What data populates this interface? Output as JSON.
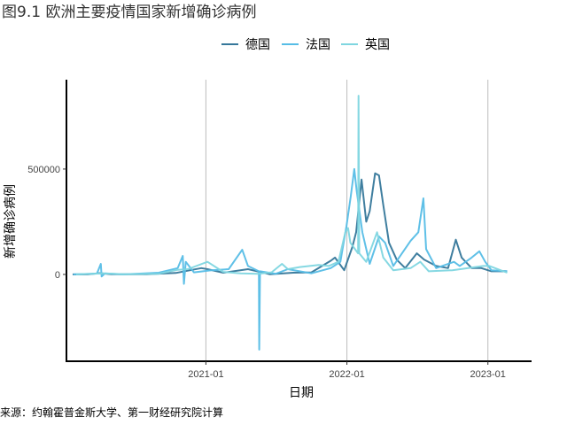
{
  "chart_data": {
    "type": "line",
    "title": "图9.1 欧洲主要疫情国家新增确诊病例",
    "xlabel": "日期",
    "ylabel": "新增确诊病例",
    "source": "来源：约翰霍普金斯大学、第一财经研究院计算",
    "xlim": [
      "2020-01-06",
      "2023-04-24"
    ],
    "ylim": [
      -412000,
      924000
    ],
    "x_ticks": [
      "2021-01",
      "2022-01",
      "2023-01"
    ],
    "y_ticks": [
      {
        "label": "500000",
        "value": 500000
      },
      {
        "label": "0",
        "value": 0
      }
    ],
    "grid": "vertical major lines only",
    "legend_position": "top",
    "series": [
      {
        "name": "德国",
        "color": "#35779a",
        "points": [
          [
            "2020-01-22",
            0
          ],
          [
            "2020-03-01",
            0
          ],
          [
            "2020-04-01",
            6000
          ],
          [
            "2020-05-01",
            1000
          ],
          [
            "2020-08-01",
            1000
          ],
          [
            "2020-10-15",
            7000
          ],
          [
            "2020-12-20",
            30000
          ],
          [
            "2021-01-05",
            25000
          ],
          [
            "2021-02-15",
            8000
          ],
          [
            "2021-04-20",
            25000
          ],
          [
            "2021-06-15",
            1000
          ],
          [
            "2021-08-15",
            8000
          ],
          [
            "2021-10-01",
            10000
          ],
          [
            "2021-11-20",
            65000
          ],
          [
            "2021-12-01",
            80000
          ],
          [
            "2021-12-25",
            20000
          ],
          [
            "2022-01-15",
            130000
          ],
          [
            "2022-01-25",
            200000
          ],
          [
            "2022-02-08",
            450000
          ],
          [
            "2022-02-20",
            250000
          ],
          [
            "2022-03-01",
            300000
          ],
          [
            "2022-03-15",
            480000
          ],
          [
            "2022-03-25",
            470000
          ],
          [
            "2022-04-05",
            330000
          ],
          [
            "2022-04-20",
            150000
          ],
          [
            "2022-05-10",
            70000
          ],
          [
            "2022-06-01",
            30000
          ],
          [
            "2022-07-01",
            100000
          ],
          [
            "2022-07-20",
            70000
          ],
          [
            "2022-08-20",
            40000
          ],
          [
            "2022-09-20",
            30000
          ],
          [
            "2022-10-10",
            165000
          ],
          [
            "2022-10-25",
            80000
          ],
          [
            "2022-11-20",
            30000
          ],
          [
            "2022-12-15",
            30000
          ],
          [
            "2023-01-10",
            15000
          ],
          [
            "2023-02-20",
            15000
          ]
        ]
      },
      {
        "name": "法国",
        "color": "#56bde6",
        "points": [
          [
            "2020-01-24",
            0
          ],
          [
            "2020-03-25",
            4000
          ],
          [
            "2020-04-04",
            50000
          ],
          [
            "2020-04-06",
            -10000
          ],
          [
            "2020-04-15",
            5000
          ],
          [
            "2020-06-01",
            0
          ],
          [
            "2020-09-01",
            8000
          ],
          [
            "2020-10-20",
            30000
          ],
          [
            "2020-11-02",
            88000
          ],
          [
            "2020-11-05",
            -45000
          ],
          [
            "2020-11-10",
            60000
          ],
          [
            "2020-12-01",
            10000
          ],
          [
            "2021-01-15",
            20000
          ],
          [
            "2021-03-01",
            25000
          ],
          [
            "2021-04-05",
            117000
          ],
          [
            "2021-04-20",
            40000
          ],
          [
            "2021-05-18",
            15000
          ],
          [
            "2021-05-19",
            -357000
          ],
          [
            "2021-05-21",
            15000
          ],
          [
            "2021-07-01",
            3000
          ],
          [
            "2021-08-01",
            25000
          ],
          [
            "2021-10-01",
            5000
          ],
          [
            "2021-11-20",
            30000
          ],
          [
            "2021-12-15",
            60000
          ],
          [
            "2021-12-31",
            230000
          ],
          [
            "2022-01-11",
            370000
          ],
          [
            "2022-01-20",
            500000
          ],
          [
            "2022-01-26",
            400000
          ],
          [
            "2022-02-10",
            200000
          ],
          [
            "2022-03-01",
            50000
          ],
          [
            "2022-03-25",
            180000
          ],
          [
            "2022-04-10",
            150000
          ],
          [
            "2022-05-01",
            40000
          ],
          [
            "2022-06-15",
            160000
          ],
          [
            "2022-07-05",
            200000
          ],
          [
            "2022-07-18",
            361000
          ],
          [
            "2022-07-25",
            120000
          ],
          [
            "2022-08-20",
            30000
          ],
          [
            "2022-10-05",
            60000
          ],
          [
            "2022-10-20",
            40000
          ],
          [
            "2022-11-20",
            80000
          ],
          [
            "2022-12-10",
            110000
          ],
          [
            "2022-12-25",
            60000
          ],
          [
            "2023-01-10",
            20000
          ],
          [
            "2023-02-20",
            15000
          ]
        ]
      },
      {
        "name": "英国",
        "color": "#7fd6e0",
        "points": [
          [
            "2020-01-31",
            0
          ],
          [
            "2020-04-10",
            5000
          ],
          [
            "2020-06-01",
            1000
          ],
          [
            "2020-09-01",
            3000
          ],
          [
            "2020-10-20",
            22000
          ],
          [
            "2020-11-15",
            25000
          ],
          [
            "2021-01-05",
            60000
          ],
          [
            "2021-02-15",
            12000
          ],
          [
            "2021-04-01",
            5000
          ],
          [
            "2021-05-15",
            3000
          ],
          [
            "2021-06-20",
            10000
          ],
          [
            "2021-07-17",
            50000
          ],
          [
            "2021-08-01",
            25000
          ],
          [
            "2021-09-01",
            35000
          ],
          [
            "2021-10-20",
            45000
          ],
          [
            "2021-11-15",
            40000
          ],
          [
            "2021-12-10",
            60000
          ],
          [
            "2021-12-28",
            200000
          ],
          [
            "2022-01-04",
            220000
          ],
          [
            "2022-01-10",
            150000
          ],
          [
            "2022-01-30",
            100000
          ],
          [
            "2022-01-31",
            848000
          ],
          [
            "2022-02-02",
            100000
          ],
          [
            "2022-02-20",
            60000
          ],
          [
            "2022-03-20",
            200000
          ],
          [
            "2022-04-05",
            80000
          ],
          [
            "2022-05-01",
            20000
          ],
          [
            "2022-06-15",
            30000
          ],
          [
            "2022-07-10",
            60000
          ],
          [
            "2022-08-01",
            15000
          ],
          [
            "2022-10-01",
            20000
          ],
          [
            "2022-12-20",
            40000
          ],
          [
            "2023-01-05",
            40000
          ],
          [
            "2023-02-20",
            8000
          ]
        ]
      }
    ]
  }
}
